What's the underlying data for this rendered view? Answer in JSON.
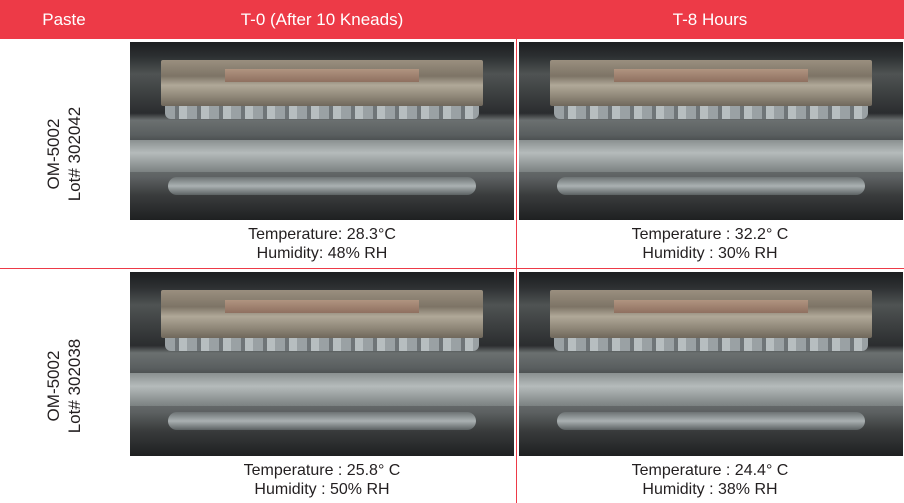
{
  "header": {
    "col_paste": "Paste",
    "col_t0": "T-0 (After 10 Kneads)",
    "col_t8": "T-8 Hours"
  },
  "rows": [
    {
      "lot_line1": "OM-5002",
      "lot_line2": "Lot# 302042",
      "t0": {
        "temp": "Temperature: 28.3°C",
        "humidity": "Humidity: 48% RH"
      },
      "t8": {
        "temp": "Temperature : 32.2° C",
        "humidity": "Humidity : 30% RH"
      }
    },
    {
      "lot_line1": "OM-5002",
      "lot_line2": "Lot# 302038",
      "t0": {
        "temp": "Temperature : 25.8° C",
        "humidity": "Humidity : 50% RH"
      },
      "t8": {
        "temp": "Temperature : 24.4° C",
        "humidity": "Humidity : 38% RH"
      }
    }
  ],
  "colors": {
    "header_bg": "#ed3a47",
    "header_text": "#ffffff",
    "divider": "#ed3a47",
    "body_text": "#231f20"
  }
}
